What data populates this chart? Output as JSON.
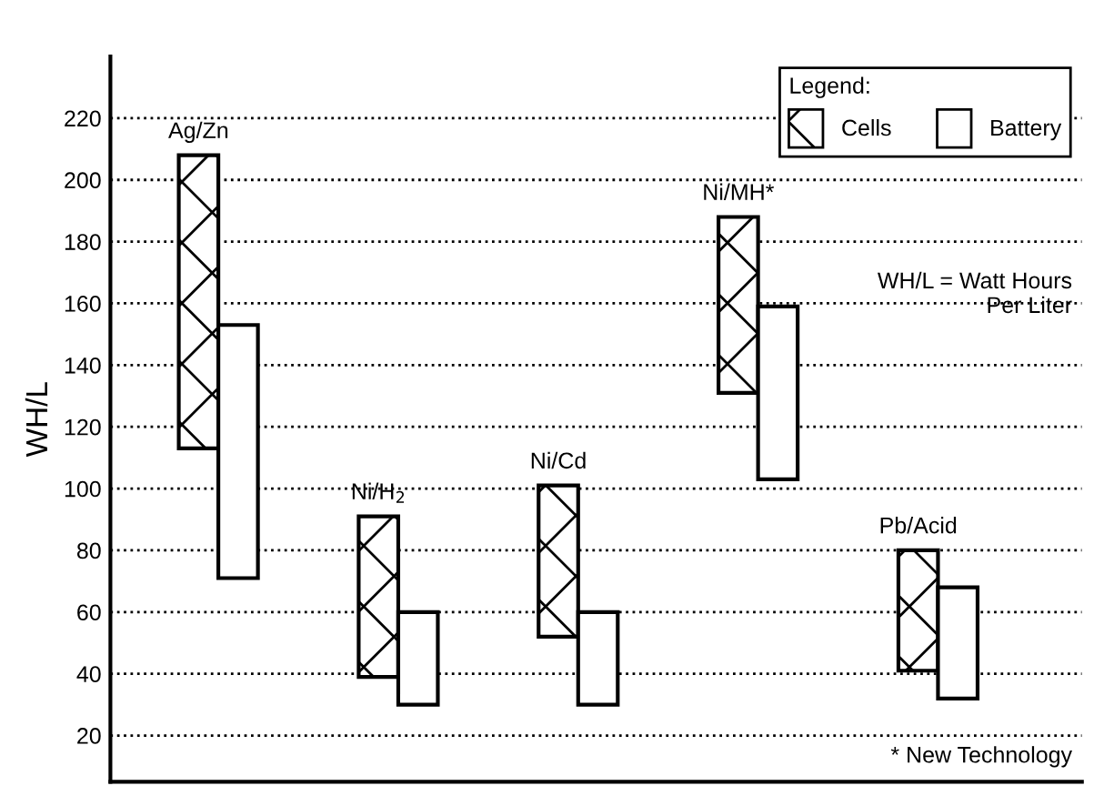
{
  "chart_data": {
    "type": "bar",
    "ylabel": "WH/L",
    "categories": [
      "Ag/Zn",
      "Ni/H$_{2}$",
      "Ni/Cd",
      "Ni/MH*",
      "Pb/Acid"
    ],
    "series": [
      {
        "name": "Cells",
        "color": "#000000",
        "base": [
          113,
          39,
          52,
          131,
          41
        ],
        "values": [
          95,
          52,
          49,
          57,
          39
        ]
      },
      {
        "name": "Battery",
        "color": "#ffffff",
        "base": [
          71,
          30,
          30,
          103,
          32
        ],
        "values": [
          82,
          30,
          30,
          56,
          36
        ]
      }
    ],
    "legend_title": "Legend:",
    "legend": "top right",
    "ylim": [
      5,
      240
    ],
    "yticks": [
      20,
      40,
      60,
      80,
      100,
      120,
      140,
      160,
      180,
      200,
      220
    ],
    "grid": "y",
    "tick_labels": "y",
    "annotations": [
      "WH/L = Watt Hours\nPer Liter",
      "* New Technology"
    ]
  }
}
